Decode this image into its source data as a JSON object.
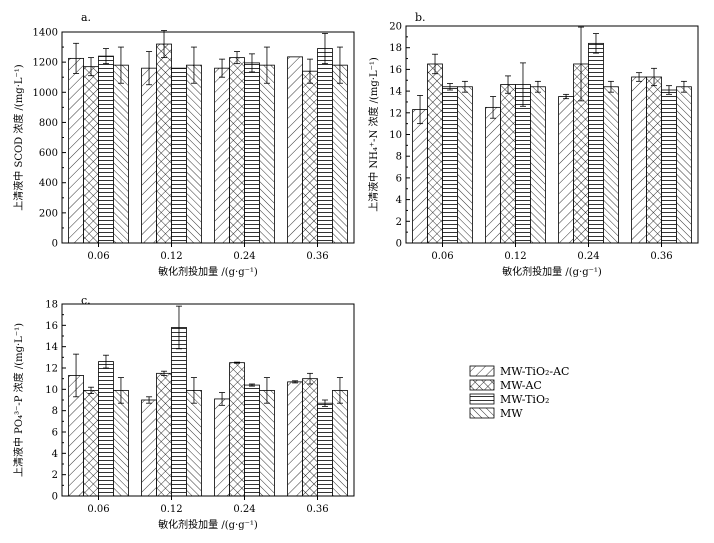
{
  "chart_data": [
    {
      "type": "bar",
      "panel": "a.",
      "categories": [
        "0.06",
        "0.12",
        "0.24",
        "0.36"
      ],
      "series": [
        {
          "name": "MW-TiO2-AC",
          "values": [
            1225,
            1160,
            1160,
            1235
          ],
          "errors": [
            100,
            110,
            60,
            0
          ]
        },
        {
          "name": "MW-AC",
          "values": [
            1170,
            1320,
            1230,
            1140
          ],
          "errors": [
            60,
            90,
            40,
            80
          ]
        },
        {
          "name": "MW-TiO2",
          "values": [
            1240,
            1160,
            1195,
            1290
          ],
          "errors": [
            50,
            0,
            60,
            100
          ]
        },
        {
          "name": "MW",
          "values": [
            1180,
            1180,
            1180,
            1180
          ],
          "errors": [
            120,
            120,
            120,
            120
          ]
        }
      ],
      "xlabel": "敏化剂投加量 /(g·g⁻¹)",
      "ylabel": "上清液中 SCOD 浓度 /(mg·L⁻¹)",
      "ylim": [
        0,
        1400
      ],
      "yticks": [
        0,
        200,
        400,
        600,
        800,
        1000,
        1200,
        1400
      ]
    },
    {
      "type": "bar",
      "panel": "b.",
      "categories": [
        "0.06",
        "0.12",
        "0.24",
        "0.36"
      ],
      "series": [
        {
          "name": "MW-TiO2-AC",
          "values": [
            12.3,
            12.5,
            13.5,
            15.3
          ],
          "errors": [
            1.3,
            1.0,
            0.2,
            0.4
          ]
        },
        {
          "name": "MW-AC",
          "values": [
            16.5,
            14.6,
            16.5,
            15.3
          ],
          "errors": [
            0.9,
            0.8,
            3.4,
            0.8
          ]
        },
        {
          "name": "MW-TiO2",
          "values": [
            14.4,
            14.6,
            18.4,
            14.1
          ],
          "errors": [
            0.3,
            2.0,
            0.9,
            0.4
          ]
        },
        {
          "name": "MW",
          "values": [
            14.4,
            14.4,
            14.4,
            14.4
          ],
          "errors": [
            0.5,
            0.5,
            0.5,
            0.5
          ]
        }
      ],
      "xlabel": "敏化剂投加量 /(g·g⁻¹)",
      "ylabel": "上清液中 NH₄⁺-N 浓度 /(mg·L⁻¹)",
      "ylim": [
        0,
        20
      ],
      "yticks": [
        0,
        2,
        4,
        6,
        8,
        10,
        12,
        14,
        16,
        18,
        20
      ]
    },
    {
      "type": "bar",
      "panel": "c.",
      "categories": [
        "0.06",
        "0.12",
        "0.24",
        "0.36"
      ],
      "series": [
        {
          "name": "MW-TiO2-AC",
          "values": [
            11.3,
            9.0,
            9.1,
            10.7
          ],
          "errors": [
            2.0,
            0.3,
            0.6,
            0.1
          ]
        },
        {
          "name": "MW-AC",
          "values": [
            9.9,
            11.5,
            12.5,
            11.0
          ],
          "errors": [
            0.3,
            0.2,
            0.05,
            0.5
          ]
        },
        {
          "name": "MW-TiO2",
          "values": [
            12.6,
            15.8,
            10.4,
            8.7
          ],
          "errors": [
            0.6,
            2.0,
            0.1,
            0.3
          ]
        },
        {
          "name": "MW",
          "values": [
            9.9,
            9.9,
            9.9,
            9.9
          ],
          "errors": [
            1.2,
            1.2,
            1.2,
            1.2
          ]
        }
      ],
      "xlabel": "敏化剂投加量 /(g·g⁻¹)",
      "ylabel": "上清液中 PO₄³⁻-P 浓度 /(mg·L⁻¹)",
      "ylim": [
        0,
        18
      ],
      "yticks": [
        0,
        2,
        4,
        6,
        8,
        10,
        12,
        14,
        16,
        18
      ]
    }
  ],
  "legend": {
    "items": [
      {
        "label": "MW-TiO₂-AC",
        "pattern": "pat-diag"
      },
      {
        "label": "MW-AC",
        "pattern": "pat-cross"
      },
      {
        "label": "MW-TiO₂",
        "pattern": "pat-horiz"
      },
      {
        "label": "MW",
        "pattern": "pat-back"
      }
    ]
  }
}
